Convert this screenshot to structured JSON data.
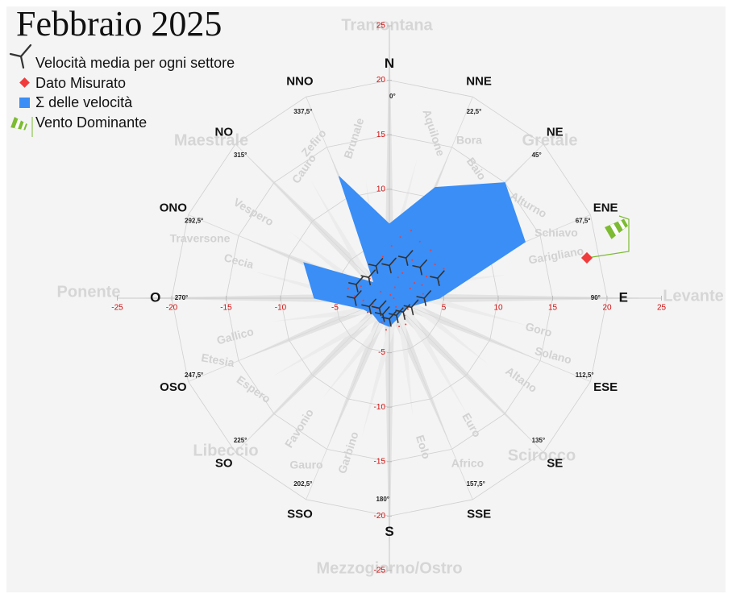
{
  "chart_data": {
    "type": "windrose",
    "title": "Febbraio 2025",
    "sectors": [
      "N",
      "NNE",
      "NE",
      "ENE",
      "E",
      "ESE",
      "SE",
      "SSE",
      "S",
      "SSO",
      "SO",
      "OSO",
      "O",
      "ONO",
      "NO",
      "NNO"
    ],
    "degrees": [
      "0°",
      "22,5°",
      "45°",
      "67,5°",
      "90°",
      "112,5°",
      "135°",
      "157,5°",
      "180°",
      "202,5°",
      "225°",
      "247,5°",
      "270°",
      "292,5°",
      "315°",
      "337,5°"
    ],
    "winds": [
      "Tramontana",
      "Gretale",
      "Levante",
      "Scirocco",
      "Mezzogiorno/Ostro",
      "Libeccio",
      "Ponente",
      "Maestrale"
    ],
    "minor_winds": [
      "Brunale",
      "Zefiro",
      "Cauro",
      "Aquilone",
      "Bora",
      "Baio",
      "Alturno",
      "Schiavo",
      "Garigliano",
      "Goro",
      "Solano",
      "Altano",
      "Euro",
      "Eolo",
      "Africo",
      "Garbino",
      "Gauro",
      "Favonio",
      "Espero",
      "Etesia",
      "Gallico",
      "Cecia",
      "Traversone",
      "Vespero"
    ],
    "series": [
      {
        "name": "Velocità media per ogni settore",
        "color": "#333333",
        "values": [
          3.0,
          4.0,
          4.0,
          4.8,
          3.2,
          2.2,
          1.8,
          1.7,
          1.9,
          1.6,
          1.3,
          2.0,
          3.2,
          3.3,
          2.7,
          3.2
        ]
      },
      {
        "name": "Σ delle velocità",
        "color": "#3a8ef6",
        "values": [
          6.8,
          11.0,
          15.0,
          13.5,
          4.6,
          2.0,
          1.7,
          2.0,
          2.6,
          2.4,
          2.1,
          2.6,
          6.9,
          8.5,
          2.0,
          12.1
        ]
      }
    ],
    "scatter": {
      "name": "Dato Misurato",
      "color": "#f03c3c",
      "x": [
        0.5,
        1.2,
        -0.8,
        2.1,
        3.4,
        -1.5,
        0.2,
        4.2,
        2.8,
        -2.6,
        1.7,
        -0.4,
        0.9,
        3.1,
        -3.2,
        5.0,
        2.3,
        -1.1,
        0.6,
        1.9,
        -2.0,
        3.8,
        0.3,
        -0.7,
        1.4,
        2.6,
        -1.8,
        0.1,
        4.6,
        -3.8,
        1.0,
        -0.3,
        2.0,
        0.8,
        -1.2,
        3.0,
        -0.6,
        1.5,
        0.4,
        -2.4
      ],
      "y": [
        1.0,
        2.3,
        0.6,
        3.5,
        2.0,
        -0.5,
        4.8,
        3.1,
        5.2,
        1.1,
        -1.0,
        -1.8,
        -2.6,
        0.4,
        0.2,
        2.7,
        1.4,
        2.4,
        -0.8,
        0.9,
        -1.3,
        4.4,
        3.3,
        -2.2,
        -1.6,
        -0.3,
        1.8,
        0.3,
        1.5,
        0.9,
        5.6,
        -2.9,
        6.2,
        1.9,
        -0.9,
        1.2,
        3.8,
        -2.4,
        0.0,
        -0.2
      ]
    },
    "dominant_label": "Vento Dominante",
    "xlim": [
      -25,
      25
    ],
    "ylim": [
      -25,
      25
    ],
    "xticks": [
      -25,
      -20,
      -15,
      -10,
      -5,
      5,
      10,
      15,
      20,
      25
    ],
    "yticks": [
      25,
      20,
      15,
      10,
      5,
      -5,
      -10,
      -15,
      -20,
      -25
    ],
    "rticks": [
      5,
      10,
      15,
      20
    ],
    "grid": true
  }
}
